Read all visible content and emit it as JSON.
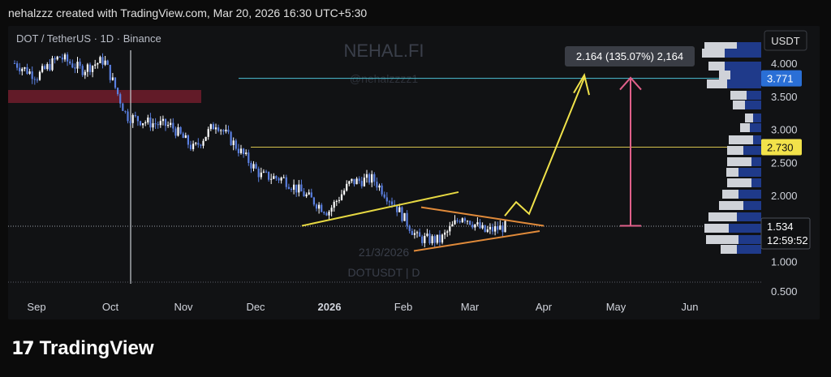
{
  "header": {
    "caption": "nehalzzz created with TradingView.com, Mar 20, 2026 16:30 UTC+5:30"
  },
  "chart_meta": {
    "symbol_line": "DOT / TetherUS · 1D · Binance",
    "watermark_name": "NEHAL.FI",
    "watermark_handle": "@nehalzzzz1",
    "date_watermark": "21/3/2026",
    "ticker_watermark": "DOTUSDT | D",
    "currency_button": "USDT",
    "measure_label": "2.164 (135.07%) 2,164",
    "price_tag_current": "1.534",
    "countdown": "12:59:52",
    "level_tag_upper": "3.771",
    "level_tag_lower": "2.730",
    "colors": {
      "candle": "#5a7fe0",
      "level_upper": "#4dc3d6",
      "level_lower": "#d6c24d",
      "resistance_zone": "#6b1d2a",
      "support_line": "#e6d842",
      "triangle": "#e08a3a",
      "target_arrow": "#f0e24a",
      "measure_arrow": "#e0608a",
      "profile_dark": "#1f3a8a",
      "profile_light": "#cfd2d8"
    }
  },
  "footer": {
    "brand": "TradingView"
  },
  "chart_data": {
    "type": "candlestick",
    "title": "DOT / TetherUS · 1D · Binance",
    "y_axis": {
      "ticks": [
        "4.000",
        "3.500",
        "3.000",
        "2.500",
        "2.000",
        "1.000",
        "0.500"
      ],
      "tick_values": [
        4.0,
        3.5,
        3.0,
        2.5,
        2.0,
        1.0,
        0.5
      ],
      "range": [
        0.5,
        4.3
      ]
    },
    "x_axis": {
      "ticks": [
        "Sep",
        "Oct",
        "Nov",
        "Dec",
        "2026",
        "Feb",
        "Mar",
        "Apr",
        "May",
        "Jun"
      ]
    },
    "series": [
      {
        "name": "DOTUSDT",
        "approx_close_path": [
          [
            "Aug 20",
            4.0
          ],
          [
            "Sep 1",
            3.8
          ],
          [
            "Sep 15",
            4.1
          ],
          [
            "Sep 25",
            3.9
          ],
          [
            "Oct 5",
            4.05
          ],
          [
            "Oct 10",
            3.2
          ],
          [
            "Oct 20",
            3.1
          ],
          [
            "Oct 31",
            3.05
          ],
          [
            "Nov 4",
            2.7
          ],
          [
            "Nov 10",
            3.1
          ],
          [
            "Nov 20",
            2.7
          ],
          [
            "Dec 1",
            2.3
          ],
          [
            "Dec 10",
            2.25
          ],
          [
            "Dec 20",
            2.0
          ],
          [
            "Dec 31",
            1.75
          ],
          [
            "Jan 10",
            2.2
          ],
          [
            "Jan 20",
            2.25
          ],
          [
            "Jan 31",
            1.85
          ],
          [
            "Feb 5",
            1.35
          ],
          [
            "Feb 20",
            1.32
          ],
          [
            "Mar 1",
            1.7
          ],
          [
            "Mar 10",
            1.45
          ],
          [
            "Mar 20",
            1.534
          ]
        ]
      }
    ],
    "levels": [
      {
        "price": 3.771,
        "label": "3.771"
      },
      {
        "price": 2.73,
        "label": "2.730"
      }
    ],
    "current_price": 1.534,
    "annotations": [
      "2.164 (135.07%) 2,164"
    ]
  }
}
